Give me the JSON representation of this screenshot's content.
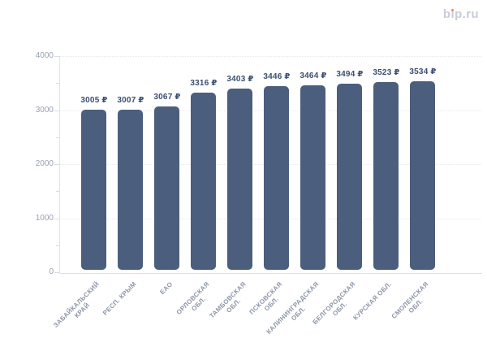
{
  "logo": {
    "text": "bip.ru",
    "color": "#c9cdd9",
    "dot_color": "#ef8560"
  },
  "chart_data": {
    "type": "bar",
    "title": "",
    "categories": [
      "ЗАБАЙКАЛЬСКИЙ КРАЙ",
      "РЕСП. КРЫМ",
      "ЕАО",
      "ОРЛОВСКАЯ ОБЛ.",
      "ТАМБОВСКАЯ ОБЛ.",
      "ПСКОВСКАЯ ОБЛ.",
      "КАЛИНИНГРАДСКАЯ ОБЛ.",
      "БЕЛГОРОДСКАЯ ОБЛ.",
      "КУРСКАЯ ОБЛ.",
      "СМОЛЕНСКАЯ ОБЛ."
    ],
    "category_lines": [
      [
        "ЗАБАЙКАЛЬСКИЙ",
        "КРАЙ"
      ],
      [
        "РЕСП. КРЫМ"
      ],
      [
        "ЕАО"
      ],
      [
        "ОРЛОВСКАЯ",
        "ОБЛ."
      ],
      [
        "ТАМБОВСКАЯ",
        "ОБЛ."
      ],
      [
        "ПСКОВСКАЯ",
        "ОБЛ."
      ],
      [
        "КАЛИНИНГРАДСКАЯ",
        "ОБЛ."
      ],
      [
        "БЕЛГОРОДСКАЯ",
        "ОБЛ."
      ],
      [
        "КУРСКАЯ ОБЛ."
      ],
      [
        "СМОЛЕНСКАЯ",
        "ОБЛ."
      ]
    ],
    "values": [
      3005,
      3007,
      3067,
      3316,
      3403,
      3446,
      3464,
      3494,
      3523,
      3534
    ],
    "value_suffix": " ₽",
    "value_labels": [
      "3005 ₽",
      "3007 ₽",
      "3067 ₽",
      "3316 ₽",
      "3403 ₽",
      "3446 ₽",
      "3464 ₽",
      "3494 ₽",
      "3523 ₽",
      "3534 ₽"
    ],
    "xlabel": "",
    "ylabel": "",
    "ylim": [
      0,
      4000
    ],
    "yticks": [
      0,
      1000,
      2000,
      3000,
      4000
    ],
    "minor_yticks": [
      500,
      1500,
      2500,
      3500
    ],
    "grid": "horizontal dotted lines at major ticks",
    "legend": "none",
    "bar_color": "#4b5e7d",
    "value_label_color": "#3b4f70",
    "axis_label_color": "#9aa1b1",
    "category_label_color": "#8c95a8"
  }
}
